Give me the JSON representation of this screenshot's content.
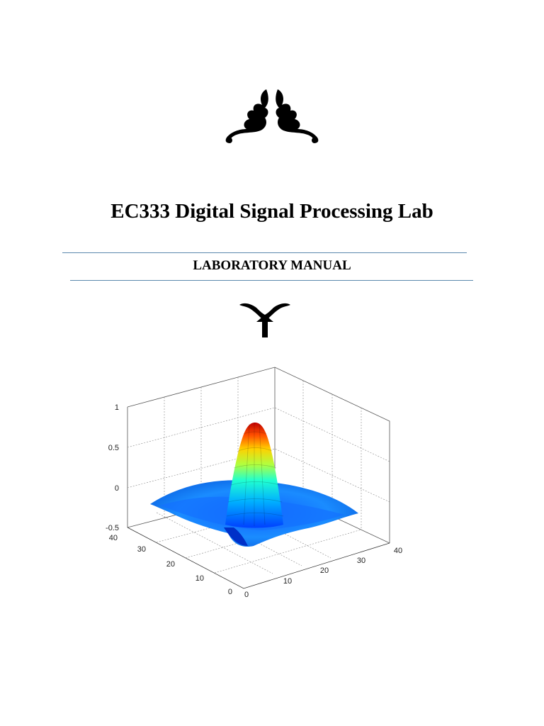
{
  "document": {
    "title": "EC333 Digital Signal Processing Lab",
    "subtitle": "LABORATORY MANUAL"
  },
  "ornaments": {
    "top": "floral-flourish-pair-icon",
    "middle": "fleuron-icon"
  },
  "chart_data": {
    "type": "surface",
    "function": "sinc",
    "z_ticks": [
      "1",
      "0.5",
      "0",
      "-0.5"
    ],
    "x_ticks": [
      "0",
      "10",
      "20",
      "30",
      "40"
    ],
    "y_ticks": [
      "0",
      "10",
      "20",
      "30",
      "40"
    ],
    "xlim": [
      0,
      40
    ],
    "ylim": [
      0,
      40
    ],
    "zlim": [
      -0.5,
      1
    ],
    "grid": true,
    "colormap": "jet",
    "colors": [
      "#00008f",
      "#0020ff",
      "#00a0ff",
      "#20ffdf",
      "#9fff60",
      "#ffdf00",
      "#ff6000",
      "#df0000",
      "#8f0000"
    ]
  }
}
